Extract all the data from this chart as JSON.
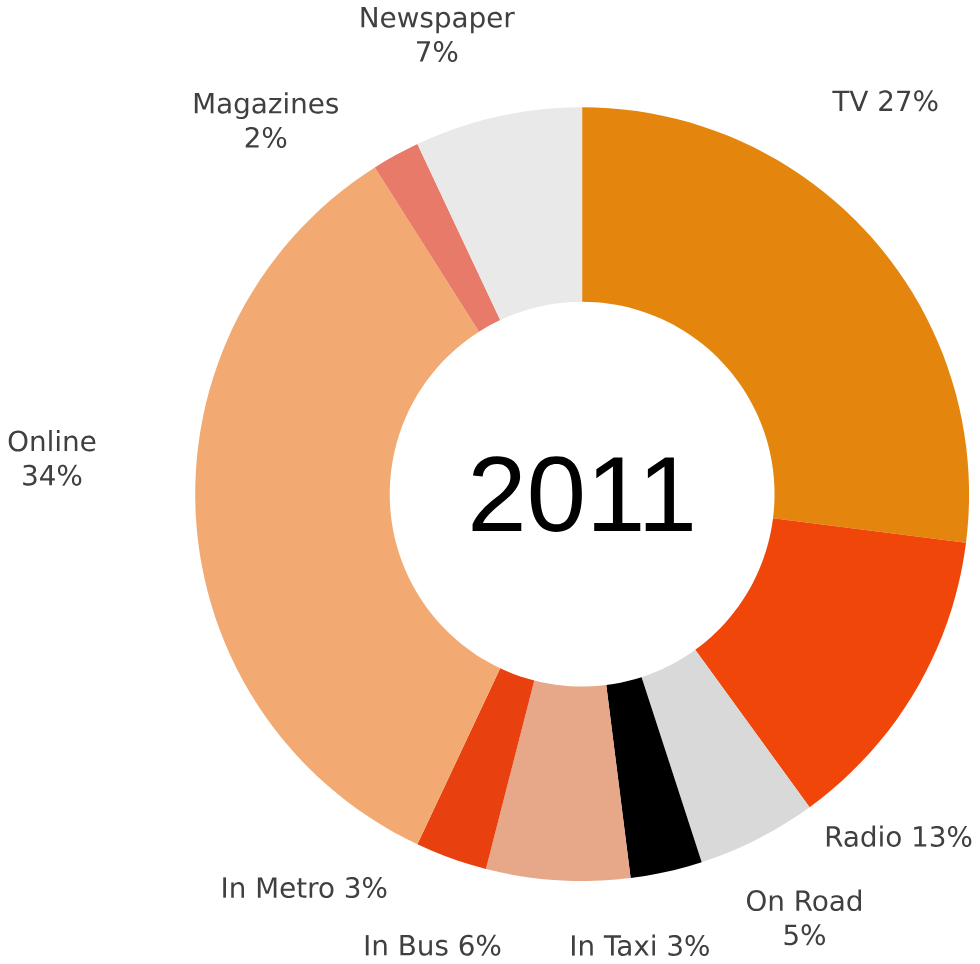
{
  "chart_data": {
    "type": "donut",
    "title": "2011",
    "categories": [
      "TV",
      "Radio",
      "On Road",
      "In Taxi",
      "In Bus",
      "In Metro",
      "Online",
      "Magazines",
      "Newspaper"
    ],
    "values": [
      27,
      13,
      5,
      3,
      6,
      3,
      34,
      2,
      7
    ],
    "value_labels": [
      "27%",
      "13%",
      "5%",
      "3%",
      "6%",
      "3%",
      "34%",
      "2%",
      "7%"
    ],
    "colors": [
      "#e4860e",
      "#f0460a",
      "#d9d9d9",
      "#000000",
      "#e6a888",
      "#e8400e",
      "#f2aa72",
      "#e87a6a",
      "#e9e9e9"
    ]
  }
}
